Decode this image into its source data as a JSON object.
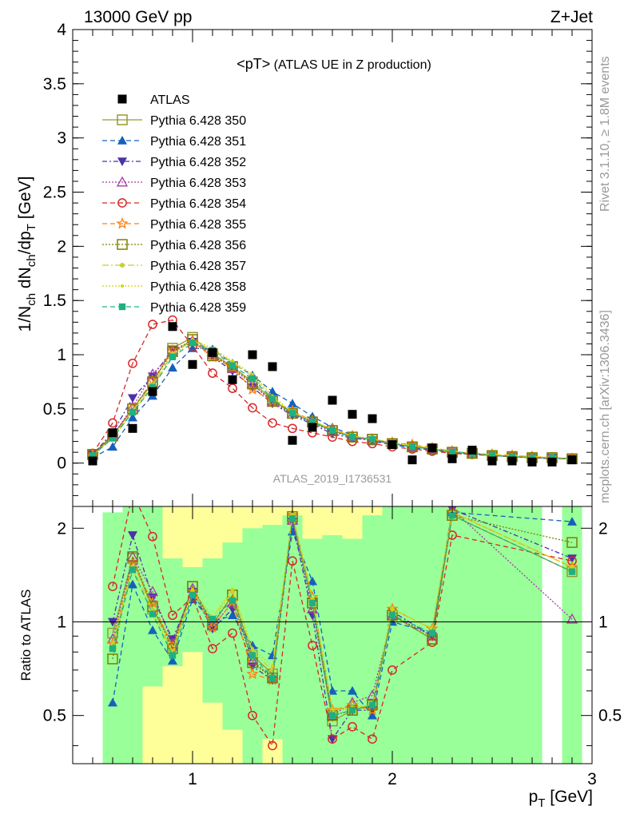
{
  "header": {
    "left": "13000 GeV pp",
    "right": "Z+Jet"
  },
  "side": {
    "rivet": "Rivet 3.1.10, ≥ 1.8M events",
    "mcplots": "mcplots.cern.ch [arXiv:1306.3436]"
  },
  "watermark": "ATLAS_2019_I1736531",
  "chart_data": [
    {
      "type": "line",
      "title": "<pT> (ATLAS UE in Z production)",
      "xlabel": "p_T [GeV]",
      "ylabel": "1/N_ch dN_ch/dp_T [GeV]",
      "xlim": [
        0.4,
        3.0
      ],
      "ylim": [
        -0.4,
        4.0
      ],
      "xticks": [
        1,
        2,
        3
      ],
      "yticks": [
        0,
        0.5,
        1,
        1.5,
        2,
        2.5,
        3,
        3.5,
        4
      ],
      "x": [
        0.5,
        0.6,
        0.7,
        0.8,
        0.9,
        1.0,
        1.1,
        1.2,
        1.3,
        1.4,
        1.5,
        1.6,
        1.7,
        1.8,
        1.9,
        2.0,
        2.1,
        2.2,
        2.3,
        2.4,
        2.5,
        2.6,
        2.7,
        2.8,
        2.9
      ],
      "data": {
        "name": "ATLAS",
        "color": "#000000",
        "values": [
          0.02,
          0.28,
          0.32,
          0.66,
          1.26,
          0.91,
          1.02,
          0.77,
          1.0,
          0.89,
          0.21,
          0.33,
          0.58,
          0.45,
          0.41,
          0.17,
          0.03,
          0.14,
          0.04,
          0.12,
          0.02,
          0.02,
          0.01,
          0.01,
          0.03
        ]
      },
      "series": [
        {
          "name": "Pythia 6.428 350",
          "color": "#999933",
          "marker": "square-open",
          "dash": "",
          "values": [
            0.08,
            0.26,
            0.5,
            0.74,
            1.06,
            1.16,
            1.01,
            0.89,
            0.75,
            0.58,
            0.46,
            0.38,
            0.3,
            0.24,
            0.22,
            0.18,
            0.15,
            0.13,
            0.1,
            0.09,
            0.07,
            0.06,
            0.05,
            0.05,
            0.04
          ]
        },
        {
          "name": "Pythia 6.428 351",
          "color": "#1560bd",
          "marker": "triangle-up",
          "dash": "6,4",
          "values": [
            0.05,
            0.15,
            0.42,
            0.62,
            0.88,
            1.06,
            1.05,
            0.92,
            0.81,
            0.66,
            0.55,
            0.43,
            0.33,
            0.26,
            0.2,
            0.17,
            0.14,
            0.12,
            0.1,
            0.08,
            0.07,
            0.06,
            0.05,
            0.04,
            0.04
          ]
        },
        {
          "name": "Pythia 6.428 352",
          "color": "#4b32a8",
          "marker": "triangle-down",
          "dash": "6,3,2,3",
          "values": [
            0.08,
            0.28,
            0.6,
            0.8,
            1.05,
            1.12,
            0.98,
            0.85,
            0.7,
            0.55,
            0.44,
            0.36,
            0.27,
            0.23,
            0.21,
            0.18,
            0.15,
            0.13,
            0.1,
            0.09,
            0.07,
            0.06,
            0.05,
            0.05,
            0.04
          ]
        },
        {
          "name": "Pythia 6.428 353",
          "color": "#a63ba6",
          "marker": "triangle-open",
          "dash": "2,2",
          "values": [
            0.07,
            0.25,
            0.52,
            0.82,
            1.02,
            1.13,
            1.0,
            0.87,
            0.73,
            0.56,
            0.45,
            0.37,
            0.29,
            0.24,
            0.21,
            0.18,
            0.15,
            0.13,
            0.1,
            0.09,
            0.07,
            0.06,
            0.05,
            0.05,
            0.04
          ]
        },
        {
          "name": "Pythia 6.428 354",
          "color": "#d62728",
          "marker": "circle-open",
          "dash": "6,4",
          "values": [
            0.09,
            0.37,
            0.92,
            1.28,
            1.32,
            1.08,
            0.83,
            0.69,
            0.51,
            0.37,
            0.32,
            0.28,
            0.24,
            0.2,
            0.18,
            0.15,
            0.13,
            0.11,
            0.09,
            0.08,
            0.07,
            0.06,
            0.05,
            0.04,
            0.04
          ]
        },
        {
          "name": "Pythia 6.428 355",
          "color": "#ff7f0e",
          "marker": "star-open",
          "dash": "6,4",
          "values": [
            0.07,
            0.24,
            0.5,
            0.76,
            1.04,
            1.12,
            0.98,
            0.88,
            0.68,
            0.57,
            0.48,
            0.39,
            0.31,
            0.25,
            0.22,
            0.19,
            0.17,
            0.14,
            0.11,
            0.09,
            0.08,
            0.07,
            0.06,
            0.05,
            0.04
          ]
        },
        {
          "name": "Pythia 6.428 356",
          "color": "#7f7f00",
          "marker": "square-open",
          "dash": "2,2",
          "values": [
            0.08,
            0.25,
            0.5,
            0.75,
            1.03,
            1.14,
            0.99,
            0.89,
            0.73,
            0.57,
            0.46,
            0.38,
            0.3,
            0.24,
            0.22,
            0.18,
            0.15,
            0.13,
            0.1,
            0.09,
            0.07,
            0.06,
            0.05,
            0.05,
            0.04
          ]
        },
        {
          "name": "Pythia 6.428 357",
          "color": "#cccc33",
          "marker": "dot",
          "dash": "8,3,2,3",
          "values": [
            0.07,
            0.24,
            0.48,
            0.72,
            1.01,
            1.13,
            1.04,
            0.93,
            0.8,
            0.6,
            0.47,
            0.39,
            0.31,
            0.25,
            0.22,
            0.19,
            0.16,
            0.14,
            0.11,
            0.09,
            0.08,
            0.07,
            0.06,
            0.05,
            0.04
          ]
        },
        {
          "name": "Pythia 6.428 358",
          "color": "#d4d400",
          "marker": "dot-small",
          "dash": "2,2",
          "values": [
            0.07,
            0.23,
            0.47,
            0.7,
            0.99,
            1.14,
            1.06,
            0.94,
            0.82,
            0.62,
            0.47,
            0.39,
            0.31,
            0.25,
            0.22,
            0.19,
            0.16,
            0.14,
            0.11,
            0.09,
            0.08,
            0.07,
            0.06,
            0.05,
            0.04
          ]
        },
        {
          "name": "Pythia 6.428 359",
          "color": "#1fb080",
          "marker": "square",
          "dash": "6,4",
          "values": [
            0.07,
            0.23,
            0.47,
            0.7,
            0.98,
            1.11,
            1.04,
            0.9,
            0.78,
            0.59,
            0.46,
            0.38,
            0.3,
            0.24,
            0.22,
            0.18,
            0.15,
            0.13,
            0.1,
            0.09,
            0.07,
            0.06,
            0.05,
            0.05,
            0.04
          ]
        }
      ],
      "legend": "top-left"
    },
    {
      "type": "line",
      "xlabel": "p_T [GeV]",
      "ylabel": "Ratio to ATLAS",
      "xlim": [
        0.4,
        3.0
      ],
      "ylim": [
        0.35,
        2.35
      ],
      "xticks": [
        1,
        2,
        3
      ],
      "yticks": [
        0.5,
        1,
        2
      ],
      "reference_line": 1,
      "x": [
        0.6,
        0.7,
        0.8,
        0.9,
        1.0,
        1.1,
        1.2,
        1.3,
        1.4,
        1.5,
        1.6,
        1.7,
        1.8,
        1.9,
        2.0,
        2.2,
        2.3,
        2.9
      ],
      "series": [
        {
          "name": "Pythia 6.428 350",
          "values": [
            0.92,
            1.6,
            1.1,
            0.85,
            1.3,
            0.98,
            1.22,
            0.78,
            0.68,
            2.15,
            1.15,
            0.48,
            0.52,
            0.54,
            1.05,
            0.88,
            2.2,
            1.45
          ]
        },
        {
          "name": "Pythia 6.428 351",
          "values": [
            0.55,
            1.32,
            0.94,
            0.75,
            1.18,
            1.0,
            1.05,
            0.84,
            0.78,
            1.95,
            1.35,
            0.6,
            0.6,
            0.5,
            1.0,
            0.92,
            2.25,
            2.1
          ]
        },
        {
          "name": "Pythia 6.428 352",
          "values": [
            1.0,
            1.9,
            1.2,
            0.88,
            1.25,
            0.95,
            1.1,
            0.72,
            0.65,
            2.1,
            1.05,
            0.42,
            0.52,
            0.52,
            1.08,
            0.9,
            2.3,
            1.6
          ]
        },
        {
          "name": "Pythia 6.428 353",
          "values": [
            0.88,
            1.62,
            1.25,
            0.85,
            1.28,
            0.97,
            1.15,
            0.75,
            0.66,
            2.12,
            1.1,
            0.5,
            0.55,
            0.58,
            1.05,
            0.9,
            2.3,
            1.02
          ]
        },
        {
          "name": "Pythia 6.428 354",
          "values": [
            1.3,
            2.9,
            1.88,
            1.05,
            1.2,
            0.82,
            0.92,
            0.5,
            0.4,
            1.57,
            0.84,
            0.42,
            0.46,
            0.42,
            0.7,
            0.86,
            1.9,
            1.57
          ]
        },
        {
          "name": "Pythia 6.428 355",
          "values": [
            0.85,
            1.55,
            1.15,
            0.83,
            1.25,
            0.96,
            1.16,
            0.68,
            0.65,
            2.2,
            1.2,
            0.52,
            0.54,
            0.52,
            1.1,
            0.95,
            2.25,
            1.5
          ]
        },
        {
          "name": "Pythia 6.428 356",
          "values": [
            0.76,
            1.62,
            1.12,
            0.82,
            1.3,
            0.98,
            1.22,
            0.74,
            0.66,
            2.18,
            1.15,
            0.5,
            0.52,
            0.54,
            1.05,
            0.88,
            2.2,
            1.8
          ]
        },
        {
          "name": "Pythia 6.428 357",
          "values": [
            0.85,
            1.5,
            1.09,
            0.8,
            1.25,
            1.02,
            1.25,
            0.8,
            0.7,
            2.2,
            1.18,
            0.52,
            0.53,
            0.54,
            1.1,
            0.95,
            2.25,
            1.5
          ]
        },
        {
          "name": "Pythia 6.428 358",
          "values": [
            0.82,
            1.47,
            1.06,
            0.79,
            1.27,
            1.04,
            1.27,
            0.82,
            0.72,
            2.2,
            1.18,
            0.52,
            0.53,
            0.54,
            1.1,
            0.95,
            2.25,
            1.5
          ]
        },
        {
          "name": "Pythia 6.428 359",
          "values": [
            0.82,
            1.47,
            1.06,
            0.78,
            1.22,
            1.02,
            1.17,
            0.78,
            0.66,
            2.15,
            1.15,
            0.5,
            0.52,
            0.54,
            1.05,
            0.92,
            2.2,
            1.45
          ]
        }
      ],
      "bands": {
        "x_edges": [
          0.55,
          0.65,
          0.75,
          0.85,
          0.95,
          1.05,
          1.15,
          1.25,
          1.35,
          1.45,
          1.55,
          1.65,
          1.75,
          1.85,
          1.95,
          2.05,
          2.15,
          2.25,
          2.35,
          2.45,
          2.55,
          2.65,
          2.75,
          2.85,
          2.95
        ],
        "green": [
          [
            0.35,
            2.35
          ],
          [
            0.35,
            2.35
          ],
          [
            0.35,
            2.35
          ],
          [
            0.35,
            2.35
          ],
          [
            0.35,
            2.35
          ],
          [
            0.35,
            2.35
          ],
          [
            0.35,
            2.35
          ],
          [
            0.35,
            2.35
          ],
          [
            0.35,
            2.35
          ],
          [
            0.35,
            2.35
          ],
          [
            0.35,
            2.35
          ],
          [
            0.35,
            2.35
          ],
          [
            0.35,
            2.35
          ],
          [
            0.35,
            2.35
          ],
          [
            0.35,
            2.35
          ],
          [
            0.35,
            2.35
          ],
          [
            0.35,
            2.35
          ],
          [
            0.35,
            2.35
          ],
          [
            0.35,
            2.35
          ],
          [
            0.35,
            2.35
          ],
          [
            0.35,
            2.35
          ],
          [
            0.35,
            2.35
          ],
          null,
          [
            0.35,
            2.35
          ]
        ],
        "yellow_upper": [
          null,
          null,
          null,
          [
            1.6,
            2.35
          ],
          [
            1.5,
            2.35
          ],
          [
            1.6,
            2.35
          ],
          [
            1.8,
            2.35
          ],
          [
            2.0,
            2.35
          ],
          [
            2.05,
            2.35
          ],
          [
            2.2,
            2.35
          ],
          [
            1.85,
            2.35
          ],
          [
            1.9,
            2.35
          ],
          [
            1.85,
            2.35
          ],
          [
            2.2,
            2.35
          ],
          null,
          null,
          null,
          null,
          null,
          null,
          null,
          null,
          null,
          null
        ],
        "yellow_lower": [
          null,
          null,
          [
            0.35,
            0.62
          ],
          [
            0.35,
            0.72
          ],
          [
            0.35,
            0.8
          ],
          [
            0.35,
            0.55
          ],
          [
            0.35,
            0.45
          ],
          null,
          [
            0.35,
            0.42
          ],
          null,
          null,
          null,
          null,
          null,
          null,
          null,
          null,
          null,
          null,
          null,
          null,
          null,
          null,
          null
        ],
        "white": [
          [
            2.25,
            2.35
          ],
          null,
          null,
          null,
          null,
          null,
          null,
          null,
          null,
          null,
          null,
          null,
          null,
          null,
          null,
          null,
          null,
          null,
          null,
          null,
          null,
          null,
          [
            0.35,
            2.35
          ],
          null
        ]
      }
    }
  ]
}
